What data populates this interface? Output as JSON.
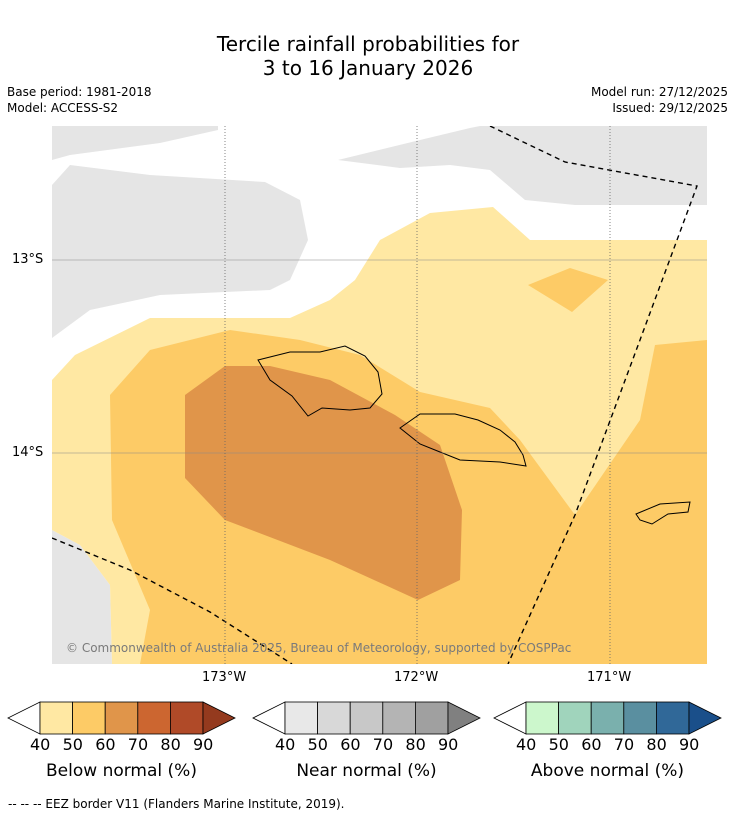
{
  "title": {
    "line1": "Tercile rainfall probabilities for",
    "line2": "3 to 16 January 2026"
  },
  "meta": {
    "base_period": "Base period: 1981-2018",
    "model": "Model: ACCESS-S2",
    "model_run": "Model run: 27/12/2025",
    "issued": "Issued: 29/12/2025"
  },
  "map": {
    "lat_labels": [
      "13°S",
      "14°S"
    ],
    "lon_labels": [
      "173°W",
      "172°W",
      "171°W"
    ],
    "copyright": "© Commonwealth of Australia 2025, Bureau of Meteorology, supported by COSPPac"
  },
  "legends": [
    {
      "label": "Below normal (%)",
      "ticks": [
        "40",
        "50",
        "60",
        "70",
        "80",
        "90"
      ],
      "colors": [
        "#ffffff",
        "#ffe8a3",
        "#fdcb66",
        "#e0954a",
        "#cc6630",
        "#b04a28",
        "#943a1e"
      ]
    },
    {
      "label": "Near normal (%)",
      "ticks": [
        "40",
        "50",
        "60",
        "70",
        "80",
        "90"
      ],
      "colors": [
        "#ffffff",
        "#e8e8e8",
        "#d8d8d8",
        "#c8c8c8",
        "#b4b4b4",
        "#a0a0a0",
        "#808080"
      ]
    },
    {
      "label": "Above normal (%)",
      "ticks": [
        "40",
        "50",
        "60",
        "70",
        "80",
        "90"
      ],
      "colors": [
        "#ffffff",
        "#ccf7cc",
        "#a0d4bc",
        "#7ab0ad",
        "#5a8fa0",
        "#306898",
        "#1a4f8a"
      ]
    }
  ],
  "footnote": "--  --  -- EEZ border V11 (Flanders Marine Institute, 2019)."
}
